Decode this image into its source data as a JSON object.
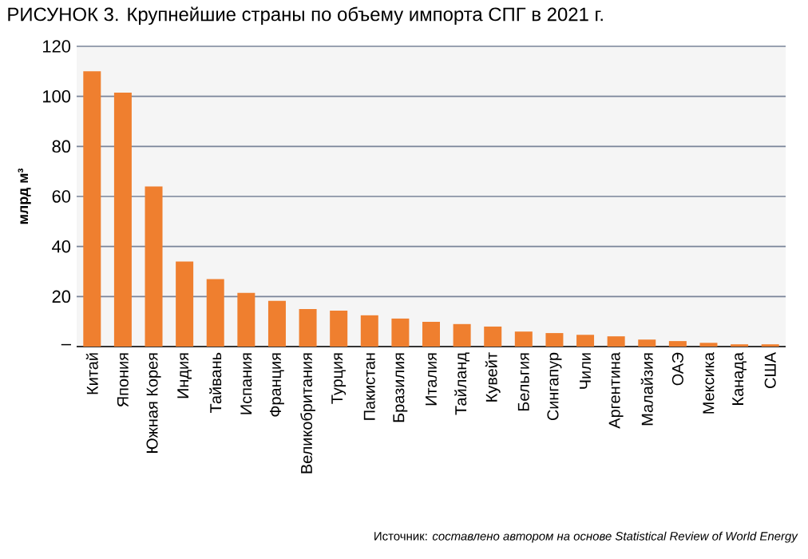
{
  "chart_data": {
    "type": "bar",
    "title": "РИСУНОК 3. Крупнейшие страны по объему импорта СПГ в 2021 г.",
    "ylabel": "млрд м³",
    "categories": [
      "Китай",
      "Япония",
      "Южная Корея",
      "Индия",
      "Тайвань",
      "Испания",
      "Франция",
      "Великобритания",
      "Турция",
      "Пакистан",
      "Бразилия",
      "Италия",
      "Тайланд",
      "Кувейт",
      "Бельгия",
      "Сингапур",
      "Чили",
      "Аргентина",
      "Малайзия",
      "ОАЭ",
      "Мексика",
      "Канада",
      "США"
    ],
    "values": [
      110,
      101.5,
      64,
      34,
      27,
      21.5,
      18.3,
      15,
      14.4,
      12.5,
      11.2,
      9.9,
      9,
      8,
      6,
      5.4,
      4.7,
      4.1,
      2.8,
      2.2,
      1.5,
      0.9,
      0.9
    ],
    "color": "#ef7f2f",
    "ylim": [
      0,
      120
    ],
    "yticks": [
      {
        "value": 0,
        "label": "–"
      },
      20,
      40,
      60,
      80,
      100,
      120
    ],
    "grid": "y",
    "annotations": [
      "Источник: *составлено автором на основе Statistical Review of World Energy*"
    ]
  }
}
